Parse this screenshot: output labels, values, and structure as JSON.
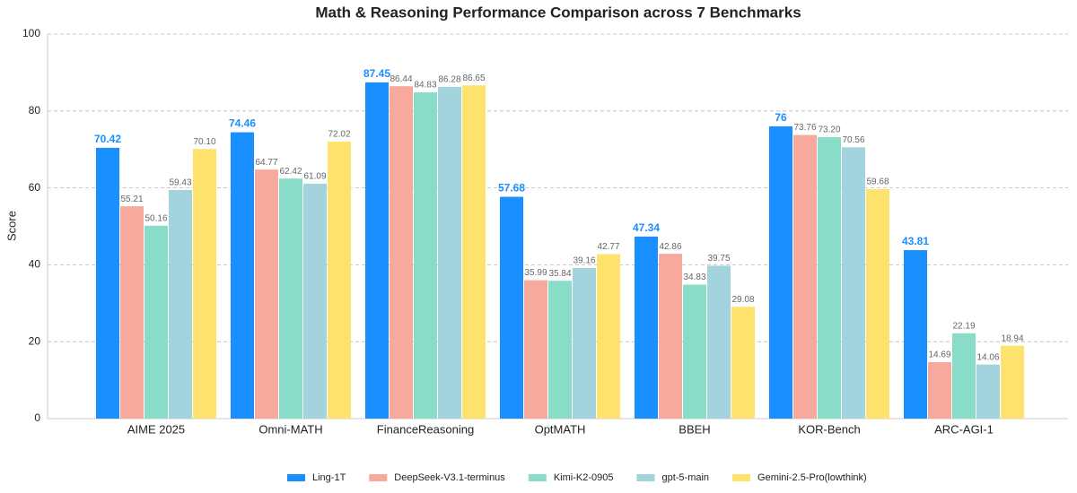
{
  "chart_data": {
    "type": "bar",
    "title": "Math & Reasoning Performance Comparison across 7 Benchmarks",
    "y_label": "Score",
    "categories": [
      "AIME 2025",
      "Omni-MATH",
      "FinanceReasoning",
      "OptMATH",
      "BBEH",
      "KOR-Bench",
      "ARC-AGI-1"
    ],
    "series": [
      {
        "name": "Ling-1T",
        "color": "#1a8fff",
        "values": [
          70.42,
          74.46,
          87.45,
          57.68,
          47.34,
          76,
          43.81
        ],
        "value_labels": [
          "70.42",
          "74.46",
          "87.45",
          "57.68",
          "47.34",
          "76",
          "43.81"
        ]
      },
      {
        "name": "DeepSeek-V3.1-terminus",
        "color": "#f8a99e",
        "values": [
          55.21,
          64.77,
          86.44,
          35.99,
          42.86,
          73.76,
          14.69
        ],
        "value_labels": [
          "55.21",
          "64.77",
          "86.44",
          "35.99",
          "42.86",
          "73.76",
          "14.69"
        ]
      },
      {
        "name": "Kimi-K2-0905",
        "color": "#88dcc8",
        "values": [
          50.16,
          62.42,
          84.83,
          35.84,
          34.83,
          73.2,
          22.19
        ],
        "value_labels": [
          "50.16",
          "62.42",
          "84.83",
          "35.84",
          "34.83",
          "73.20",
          "22.19"
        ]
      },
      {
        "name": "gpt-5-main",
        "color": "#a3d3dc",
        "values": [
          59.43,
          61.09,
          86.28,
          39.16,
          39.75,
          70.56,
          14.06
        ],
        "value_labels": [
          "59.43",
          "61.09",
          "86.28",
          "39.16",
          "39.75",
          "70.56",
          "14.06"
        ]
      },
      {
        "name": "Gemini-2.5-Pro(lowthink)",
        "color": "#fde36e",
        "values": [
          70.1,
          72.02,
          86.65,
          42.77,
          29.08,
          59.68,
          18.94
        ],
        "value_labels": [
          "70.10",
          "72.02",
          "86.65",
          "42.77",
          "29.08",
          "59.68",
          "18.94"
        ]
      }
    ],
    "ylim": [
      0,
      100
    ],
    "yticks": [
      0,
      20,
      40,
      60,
      80,
      100
    ],
    "grid": true,
    "legend": "bottom"
  }
}
